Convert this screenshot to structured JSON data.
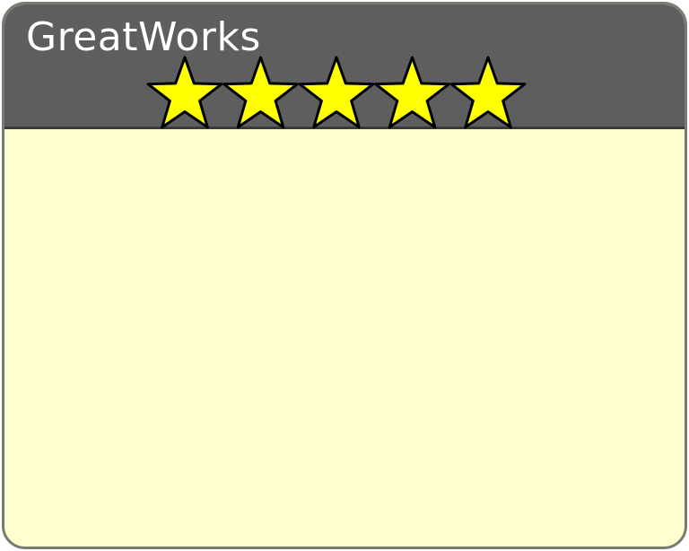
{
  "window": {
    "title": "GreatWorks"
  },
  "rating": {
    "value": 5,
    "max": 5,
    "icon": "star-icon"
  },
  "colors": {
    "titlebar": "#5e5e5e",
    "body": "#ffffd0",
    "border": "#7a7a72",
    "star_fill": "#ffff00",
    "star_stroke": "#000000",
    "title_text": "#ffffff"
  }
}
